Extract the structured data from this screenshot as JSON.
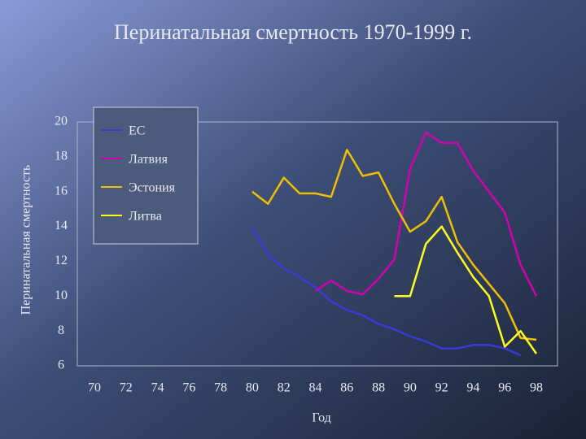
{
  "chart_data": {
    "type": "line",
    "title": "Перинатальная смертность 1970-1999 г.",
    "x_label": "Год",
    "y_label": "Перинатальная смертность",
    "x": [
      80,
      81,
      82,
      83,
      84,
      85,
      86,
      87,
      88,
      89,
      90,
      91,
      92,
      93,
      94,
      95,
      96,
      97,
      98
    ],
    "series": [
      {
        "name": "ЕС",
        "color": "#3a3ad6",
        "values": [
          13.9,
          12.4,
          11.6,
          11.1,
          10.5,
          9.7,
          9.2,
          8.9,
          8.4,
          8.1,
          7.7,
          7.4,
          7.0,
          7.0,
          7.2,
          7.2,
          7.0,
          6.6,
          null
        ]
      },
      {
        "name": "Латвия",
        "color": "#d000b0",
        "values": [
          null,
          null,
          null,
          null,
          10.3,
          10.9,
          10.3,
          10.1,
          11.0,
          12.1,
          17.3,
          19.4,
          18.8,
          18.8,
          17.2,
          16.0,
          14.8,
          11.8,
          10.0
        ]
      },
      {
        "name": "Эстония",
        "color": "#f0c000",
        "values": [
          16.0,
          15.3,
          16.8,
          15.9,
          15.9,
          15.7,
          18.4,
          16.9,
          17.1,
          15.3,
          13.7,
          14.3,
          15.7,
          13.1,
          11.8,
          10.7,
          9.6,
          7.6,
          7.5
        ]
      },
      {
        "name": "Литва",
        "color": "#ffff20",
        "values": [
          null,
          null,
          null,
          null,
          null,
          null,
          null,
          null,
          null,
          10.0,
          10.0,
          13.0,
          14.0,
          12.5,
          11.1,
          10.0,
          7.1,
          8.0,
          6.7
        ]
      }
    ],
    "xlim": [
      70,
      98
    ],
    "xticks": [
      70,
      72,
      74,
      76,
      78,
      80,
      82,
      84,
      86,
      88,
      90,
      92,
      94,
      96,
      98
    ],
    "ylim": [
      6,
      20
    ],
    "yticks": [
      6,
      8,
      10,
      12,
      14,
      16,
      18,
      20
    ],
    "legend": "top-left"
  }
}
